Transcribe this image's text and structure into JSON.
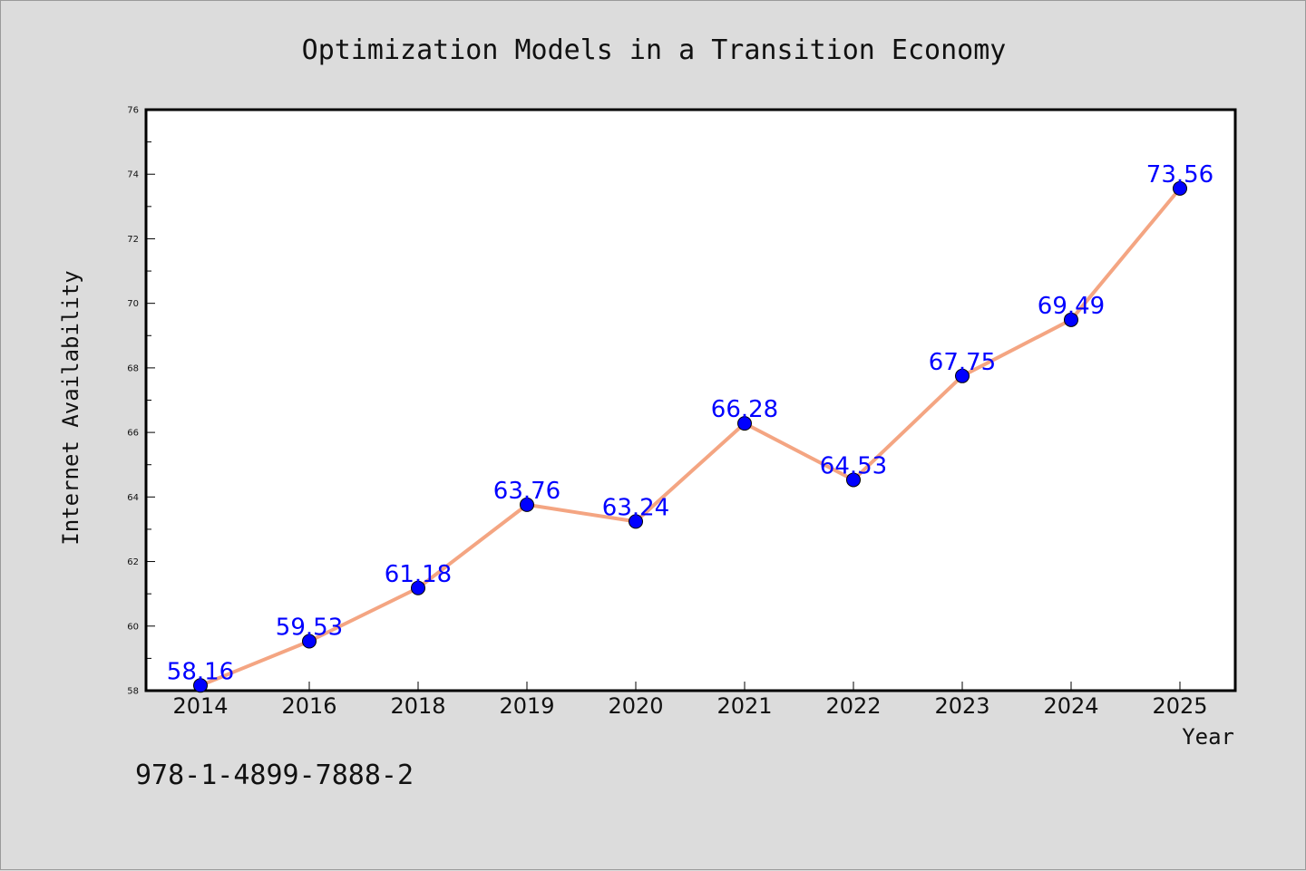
{
  "chart_data": {
    "type": "line",
    "title": "Optimization Models in a Transition Economy",
    "xlabel": "Year",
    "ylabel": "Internet Availability",
    "categories": [
      "2014",
      "2016",
      "2018",
      "2019",
      "2020",
      "2021",
      "2022",
      "2023",
      "2024",
      "2025"
    ],
    "series": [
      {
        "values": [
          58.16,
          59.53,
          61.18,
          63.76,
          63.24,
          66.28,
          64.53,
          67.75,
          69.49,
          73.56
        ],
        "line_color": "#f4a582",
        "marker_color": "#0000ff"
      }
    ],
    "data_labels": [
      "58.16",
      "59.53",
      "61.18",
      "63.76",
      "63.24",
      "66.28",
      "64.53",
      "67.75",
      "69.49",
      "73.56"
    ],
    "ylim": [
      58,
      76
    ],
    "yticks": [
      "58",
      "60",
      "62",
      "64",
      "66",
      "68",
      "70",
      "72",
      "74",
      "76"
    ],
    "grid": false,
    "legend": "none"
  },
  "footnote": "978-1-4899-7888-2"
}
